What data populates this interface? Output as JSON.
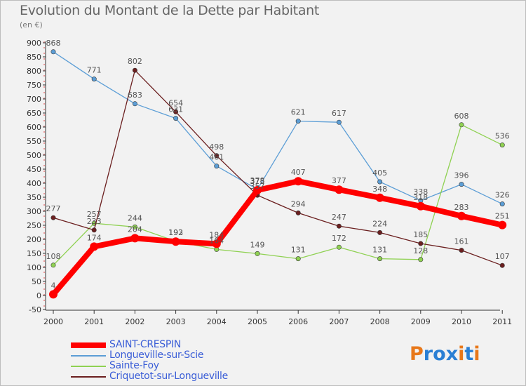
{
  "header": {
    "title": "Evolution du Montant de la Dette par Habitant",
    "subtitle": "(en €)"
  },
  "logo": {
    "letters": [
      "P",
      "r",
      "o",
      "x",
      "i",
      "t",
      "i"
    ]
  },
  "colors": {
    "background": "#f2f2f2",
    "axis": "#333333",
    "tick_text": "#333333",
    "label_text": "#555555"
  },
  "chart_data": {
    "type": "line",
    "title": "Evolution du Montant de la Dette par Habitant",
    "subtitle": "(en €)",
    "xlabel": "",
    "ylabel": "",
    "x": [
      "2000",
      "2001",
      "2002",
      "2003",
      "2004",
      "2005",
      "2006",
      "2007",
      "2008",
      "2009",
      "2010",
      "2011"
    ],
    "ylim": [
      -50,
      900
    ],
    "yticks": [
      -50,
      0,
      50,
      100,
      150,
      200,
      250,
      300,
      350,
      400,
      450,
      500,
      550,
      600,
      650,
      700,
      750,
      800,
      850,
      900
    ],
    "grid": false,
    "legend_position": "bottom-left",
    "series": [
      {
        "name": "SAINT-CRESPIN",
        "color": "#ff0000",
        "values": [
          4,
          174,
          204,
          192,
          184,
          375,
          407,
          377,
          348,
          318,
          283,
          251
        ],
        "labels": [
          "4",
          "174",
          "204",
          "192",
          "184",
          "375",
          "407",
          "377",
          "348",
          "318",
          "283",
          "251"
        ]
      },
      {
        "name": "Longueville-sur-Scie",
        "color": "#5c9ed6",
        "values": [
          868,
          771,
          683,
          631,
          461,
          378,
          621,
          617,
          405,
          338,
          396,
          326
        ],
        "labels": [
          "868",
          "771",
          "683",
          "631",
          "461",
          "378",
          "621",
          "617",
          "405",
          "338",
          "396",
          "326"
        ]
      },
      {
        "name": "Sainte-Foy",
        "color": "#8fd152",
        "values": [
          108,
          257,
          244,
          193,
          164,
          149,
          131,
          172,
          131,
          128,
          608,
          536
        ],
        "labels": [
          "108",
          "257",
          "244",
          "193",
          "164",
          "149",
          "131",
          "172",
          "131",
          "128",
          "608",
          "536"
        ]
      },
      {
        "name": "Criquetot-sur-Longueville",
        "color": "#6b1f1f",
        "values": [
          277,
          233,
          802,
          654,
          498,
          357,
          294,
          247,
          224,
          185,
          161,
          107
        ],
        "labels": [
          "277",
          "233",
          "802",
          "654",
          "498",
          "357",
          "294",
          "247",
          "224",
          "185",
          "161",
          "107"
        ]
      }
    ]
  }
}
